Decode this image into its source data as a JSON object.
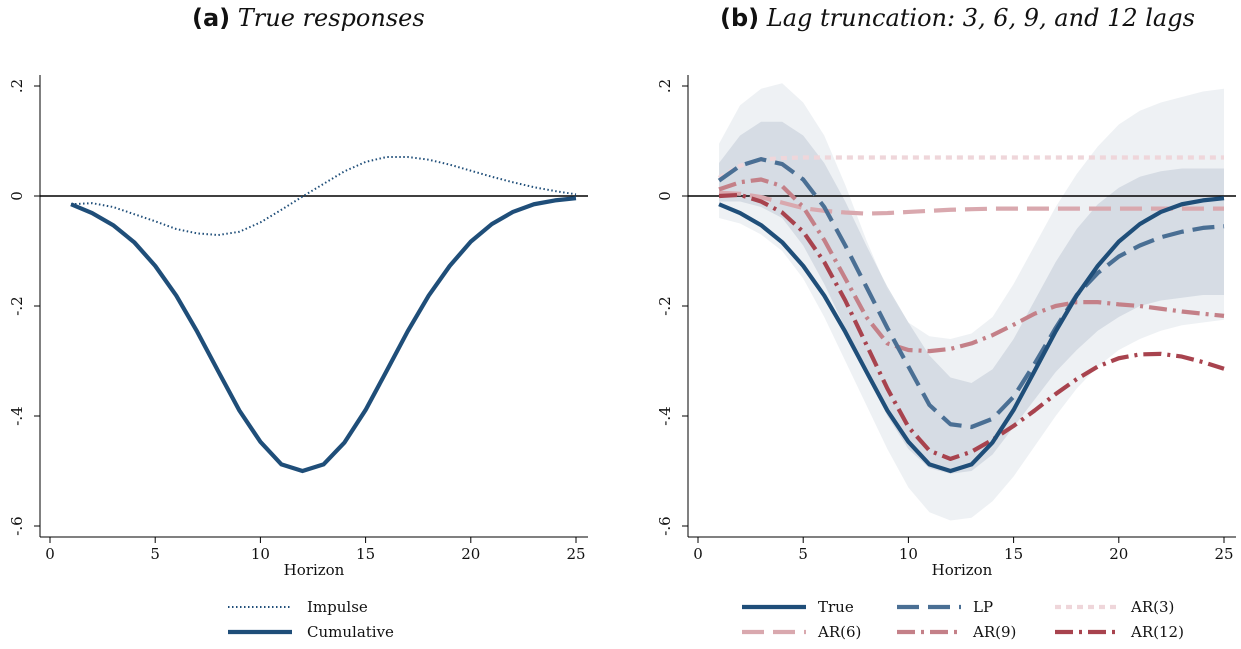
{
  "panels": {
    "a": {
      "letter": "(a)",
      "title": "True responses"
    },
    "b": {
      "letter": "(b)",
      "title": "Lag truncation: 3, 6, 9, and 12 lags"
    }
  },
  "colors": {
    "true": "#1f4e79",
    "lp": "#4a6f94",
    "ar3": "#efd6da",
    "ar6": "#d9a8ae",
    "ar9": "#c48088",
    "ar12": "#a8434e",
    "band_outer": "#eceff3",
    "band_inner": "#cfd7e0"
  },
  "chart_data": [
    {
      "type": "line",
      "panel": "a",
      "xlabel": "Horizon",
      "ylabel": "",
      "xlim": [
        0,
        25
      ],
      "ylim": [
        -0.6,
        0.2
      ],
      "xticks": [
        0,
        5,
        10,
        15,
        20,
        25
      ],
      "xtick_labels": [
        "0",
        "5",
        "10",
        "15",
        "20",
        "25"
      ],
      "yticks": [
        -0.6,
        -0.4,
        -0.2,
        0,
        0.2
      ],
      "ytick_labels": [
        "-.6",
        "-.4",
        "-.2",
        "0",
        ".2"
      ],
      "hline": 0,
      "legend_position": "bottom",
      "series": [
        {
          "key": "impulse",
          "name": "Impulse",
          "style": "dotted",
          "x": [
            1,
            2,
            3,
            4,
            5,
            6,
            7,
            8,
            9,
            10,
            11,
            12,
            13,
            14,
            15,
            16,
            17,
            18,
            19,
            20,
            21,
            22,
            23,
            24,
            25
          ],
          "y": [
            -0.015,
            -0.013,
            -0.02,
            -0.033,
            -0.046,
            -0.06,
            -0.068,
            -0.071,
            -0.065,
            -0.048,
            -0.025,
            -0.001,
            0.022,
            0.045,
            0.062,
            0.071,
            0.071,
            0.066,
            0.057,
            0.046,
            0.035,
            0.025,
            0.016,
            0.009,
            0.003
          ]
        },
        {
          "key": "cumulative",
          "name": "Cumulative",
          "style": "solid",
          "x": [
            1,
            2,
            3,
            4,
            5,
            6,
            7,
            8,
            9,
            10,
            11,
            12,
            13,
            14,
            15,
            16,
            17,
            18,
            19,
            20,
            21,
            22,
            23,
            24,
            25
          ],
          "y": [
            -0.015,
            -0.031,
            -0.053,
            -0.084,
            -0.127,
            -0.181,
            -0.247,
            -0.319,
            -0.39,
            -0.447,
            -0.488,
            -0.5,
            -0.488,
            -0.448,
            -0.389,
            -0.318,
            -0.246,
            -0.181,
            -0.127,
            -0.083,
            -0.051,
            -0.029,
            -0.015,
            -0.008,
            -0.004
          ]
        }
      ]
    },
    {
      "type": "line",
      "panel": "b",
      "xlabel": "Horizon",
      "ylabel": "",
      "xlim": [
        0,
        25
      ],
      "ylim": [
        -0.6,
        0.2
      ],
      "xticks": [
        0,
        5,
        10,
        15,
        20,
        25
      ],
      "xtick_labels": [
        "0",
        "5",
        "10",
        "15",
        "20",
        "25"
      ],
      "yticks": [
        -0.6,
        -0.4,
        -0.2,
        0,
        0.2
      ],
      "ytick_labels": [
        "-.6",
        "-.4",
        "-.2",
        "0",
        ".2"
      ],
      "hline": 0,
      "legend_position": "bottom",
      "bands": [
        {
          "key": "outer",
          "x": [
            1,
            2,
            3,
            4,
            5,
            6,
            7,
            8,
            9,
            10,
            11,
            12,
            13,
            14,
            15,
            16,
            17,
            18,
            19,
            20,
            21,
            22,
            23,
            24,
            25
          ],
          "lower": [
            -0.04,
            -0.05,
            -0.07,
            -0.1,
            -0.15,
            -0.22,
            -0.3,
            -0.38,
            -0.46,
            -0.53,
            -0.575,
            -0.59,
            -0.585,
            -0.555,
            -0.51,
            -0.455,
            -0.4,
            -0.35,
            -0.31,
            -0.28,
            -0.26,
            -0.245,
            -0.235,
            -0.23,
            -0.225
          ],
          "upper": [
            0.095,
            0.165,
            0.195,
            0.205,
            0.17,
            0.11,
            0.02,
            -0.08,
            -0.17,
            -0.23,
            -0.255,
            -0.26,
            -0.25,
            -0.22,
            -0.16,
            -0.09,
            -0.02,
            0.04,
            0.09,
            0.13,
            0.155,
            0.17,
            0.18,
            0.19,
            0.195
          ]
        },
        {
          "key": "inner",
          "x": [
            1,
            2,
            3,
            4,
            5,
            6,
            7,
            8,
            9,
            10,
            11,
            12,
            13,
            14,
            15,
            16,
            17,
            18,
            19,
            20,
            21,
            22,
            23,
            24,
            25
          ],
          "lower": [
            -0.01,
            -0.01,
            -0.02,
            -0.04,
            -0.09,
            -0.16,
            -0.24,
            -0.32,
            -0.4,
            -0.46,
            -0.495,
            -0.505,
            -0.5,
            -0.47,
            -0.42,
            -0.37,
            -0.32,
            -0.28,
            -0.245,
            -0.22,
            -0.2,
            -0.19,
            -0.185,
            -0.18,
            -0.18
          ],
          "upper": [
            0.06,
            0.11,
            0.135,
            0.135,
            0.11,
            0.06,
            -0.01,
            -0.09,
            -0.165,
            -0.23,
            -0.29,
            -0.33,
            -0.34,
            -0.315,
            -0.26,
            -0.19,
            -0.12,
            -0.06,
            -0.015,
            0.015,
            0.035,
            0.045,
            0.05,
            0.05,
            0.05
          ]
        }
      ],
      "series": [
        {
          "key": "true",
          "name": "True",
          "style": "solid",
          "x": [
            1,
            2,
            3,
            4,
            5,
            6,
            7,
            8,
            9,
            10,
            11,
            12,
            13,
            14,
            15,
            16,
            17,
            18,
            19,
            20,
            21,
            22,
            23,
            24,
            25
          ],
          "y": [
            -0.015,
            -0.031,
            -0.053,
            -0.084,
            -0.127,
            -0.181,
            -0.247,
            -0.319,
            -0.39,
            -0.447,
            -0.488,
            -0.5,
            -0.488,
            -0.448,
            -0.389,
            -0.318,
            -0.246,
            -0.181,
            -0.127,
            -0.083,
            -0.051,
            -0.029,
            -0.015,
            -0.008,
            -0.004
          ]
        },
        {
          "key": "lp",
          "name": "LP",
          "style": "longdash",
          "x": [
            1,
            2,
            3,
            4,
            5,
            6,
            7,
            8,
            9,
            10,
            11,
            12,
            13,
            14,
            15,
            16,
            17,
            18,
            19,
            20,
            21,
            22,
            23,
            24,
            25
          ],
          "y": [
            0.028,
            0.055,
            0.067,
            0.058,
            0.03,
            -0.02,
            -0.09,
            -0.165,
            -0.24,
            -0.31,
            -0.38,
            -0.415,
            -0.42,
            -0.405,
            -0.365,
            -0.305,
            -0.24,
            -0.18,
            -0.14,
            -0.11,
            -0.09,
            -0.075,
            -0.065,
            -0.058,
            -0.055
          ]
        },
        {
          "key": "ar3",
          "name": "AR(3)",
          "style": "shortdash",
          "x": [
            1,
            2,
            3,
            4,
            5,
            6,
            7,
            8,
            9,
            10,
            11,
            12,
            13,
            14,
            15,
            16,
            17,
            18,
            19,
            20,
            21,
            22,
            23,
            24,
            25
          ],
          "y": [
            0.033,
            0.055,
            0.066,
            0.069,
            0.07,
            0.07,
            0.07,
            0.07,
            0.07,
            0.07,
            0.07,
            0.07,
            0.07,
            0.07,
            0.07,
            0.07,
            0.07,
            0.07,
            0.07,
            0.07,
            0.07,
            0.07,
            0.07,
            0.07,
            0.07
          ]
        },
        {
          "key": "ar6",
          "name": "AR(6)",
          "style": "longdash",
          "x": [
            1,
            2,
            3,
            4,
            5,
            6,
            7,
            8,
            9,
            10,
            11,
            12,
            13,
            14,
            15,
            16,
            17,
            18,
            19,
            20,
            21,
            22,
            23,
            24,
            25
          ],
          "y": [
            0.006,
            0.004,
            -0.002,
            -0.012,
            -0.022,
            -0.027,
            -0.03,
            -0.032,
            -0.031,
            -0.029,
            -0.027,
            -0.025,
            -0.024,
            -0.023,
            -0.023,
            -0.023,
            -0.023,
            -0.023,
            -0.023,
            -0.023,
            -0.023,
            -0.023,
            -0.023,
            -0.023,
            -0.023
          ]
        },
        {
          "key": "ar9",
          "name": "AR(9)",
          "style": "dashdot",
          "x": [
            1,
            2,
            3,
            4,
            5,
            6,
            7,
            8,
            9,
            10,
            11,
            12,
            13,
            14,
            15,
            16,
            17,
            18,
            19,
            20,
            21,
            22,
            23,
            24,
            25
          ],
          "y": [
            0.012,
            0.025,
            0.03,
            0.018,
            -0.02,
            -0.08,
            -0.15,
            -0.22,
            -0.268,
            -0.28,
            -0.282,
            -0.278,
            -0.268,
            -0.253,
            -0.234,
            -0.214,
            -0.2,
            -0.193,
            -0.193,
            -0.197,
            -0.2,
            -0.205,
            -0.21,
            -0.214,
            -0.218
          ]
        },
        {
          "key": "ar12",
          "name": "AR(12)",
          "style": "dashdot",
          "x": [
            1,
            2,
            3,
            4,
            5,
            6,
            7,
            8,
            9,
            10,
            11,
            12,
            13,
            14,
            15,
            16,
            17,
            18,
            19,
            20,
            21,
            22,
            23,
            24,
            25
          ],
          "y": [
            0.0,
            0.002,
            -0.01,
            -0.03,
            -0.065,
            -0.12,
            -0.19,
            -0.27,
            -0.35,
            -0.42,
            -0.463,
            -0.478,
            -0.465,
            -0.443,
            -0.418,
            -0.39,
            -0.36,
            -0.333,
            -0.31,
            -0.295,
            -0.288,
            -0.287,
            -0.292,
            -0.302,
            -0.314
          ]
        }
      ]
    }
  ]
}
